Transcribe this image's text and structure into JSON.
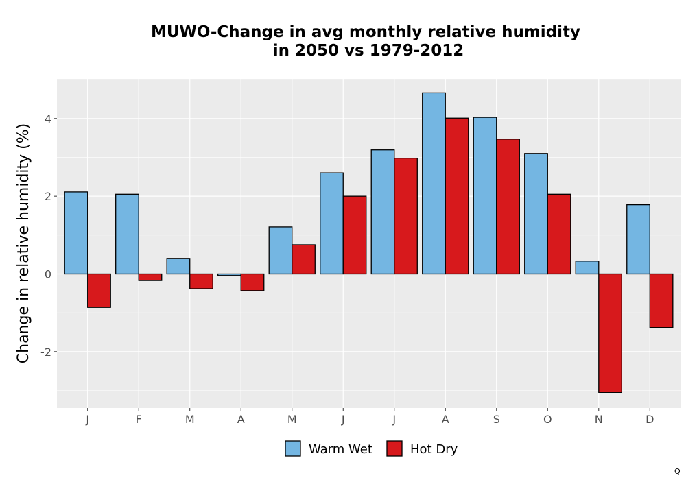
{
  "chart_data": {
    "type": "bar",
    "title": "MUWO-Change in avg monthly relative humidity",
    "subtitle": "in 2050 vs 1979-2012",
    "xlabel": "",
    "ylabel": "Change in relative humidity (%)",
    "categories": [
      "J",
      "F",
      "M",
      "A",
      "M",
      "J",
      "J",
      "A",
      "S",
      "O",
      "N",
      "D"
    ],
    "series": [
      {
        "name": "Warm Wet",
        "color": "#74b6e2",
        "values": [
          2.11,
          2.05,
          0.4,
          -0.04,
          1.21,
          2.6,
          3.19,
          4.66,
          4.03,
          3.1,
          0.33,
          1.78
        ]
      },
      {
        "name": "Hot Dry",
        "color": "#d7191c",
        "values": [
          -0.86,
          -0.17,
          -0.38,
          -0.43,
          0.75,
          2.0,
          2.98,
          4.01,
          3.47,
          2.05,
          -3.05,
          -1.38
        ]
      }
    ],
    "ylim": [
      -3.45,
      5.02
    ],
    "yticks": [
      -2,
      0,
      2,
      4
    ],
    "grid": true,
    "legend_position": "bottom"
  },
  "corner_mark": "Q"
}
